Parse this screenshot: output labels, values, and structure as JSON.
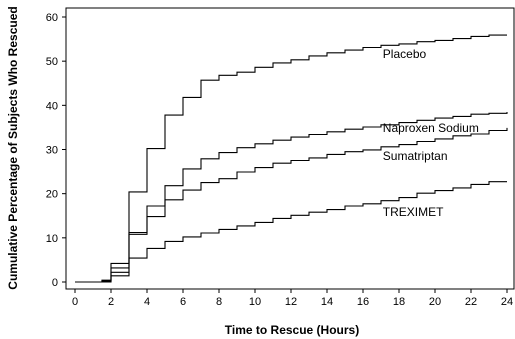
{
  "chart_data": {
    "type": "line",
    "step": true,
    "xlabel": "Time to Rescue (Hours)",
    "ylabel": "Cumulative Percentage of Subjects Who Rescued",
    "xlim": [
      0,
      24
    ],
    "ylim": [
      0,
      60
    ],
    "x_ticks": [
      0,
      2,
      4,
      6,
      8,
      10,
      12,
      14,
      16,
      18,
      20,
      22,
      24
    ],
    "y_ticks": [
      0,
      10,
      20,
      30,
      40,
      50,
      60
    ],
    "grid": false,
    "legend": "inline labels",
    "series": [
      {
        "name": "Placebo",
        "label_at": [
          17.1,
          51.6
        ],
        "points": [
          [
            0,
            0
          ],
          [
            1,
            0
          ],
          [
            1.5,
            0.4
          ],
          [
            2,
            4.2
          ],
          [
            3,
            20.4
          ],
          [
            4,
            30.2
          ],
          [
            5,
            37.8
          ],
          [
            6,
            41.8
          ],
          [
            7,
            45.7
          ],
          [
            8,
            46.8
          ],
          [
            9,
            47.5
          ],
          [
            10,
            48.6
          ],
          [
            11,
            49.6
          ],
          [
            12,
            50.3
          ],
          [
            13,
            51.2
          ],
          [
            14,
            51.9
          ],
          [
            15,
            52.5
          ],
          [
            16,
            53.1
          ],
          [
            17,
            53.6
          ],
          [
            18,
            53.9
          ],
          [
            19,
            54.4
          ],
          [
            20,
            54.7
          ],
          [
            21,
            55.1
          ],
          [
            22,
            55.6
          ],
          [
            23,
            55.9
          ]
        ]
      },
      {
        "name": "Naproxen Sodium",
        "label_at": [
          17.1,
          34.9
        ],
        "points": [
          [
            0,
            0
          ],
          [
            1,
            0
          ],
          [
            1.5,
            0.3
          ],
          [
            2,
            3.2
          ],
          [
            3,
            11.2
          ],
          [
            4,
            17.2
          ],
          [
            5,
            21.8
          ],
          [
            6,
            25.6
          ],
          [
            7,
            27.9
          ],
          [
            8,
            29.3
          ],
          [
            9,
            30.4
          ],
          [
            10,
            31.3
          ],
          [
            11,
            32.1
          ],
          [
            12,
            32.8
          ],
          [
            13,
            33.4
          ],
          [
            14,
            34
          ],
          [
            15,
            34.6
          ],
          [
            16,
            35.1
          ],
          [
            17,
            35.6
          ],
          [
            18,
            36.1
          ],
          [
            19,
            36.6
          ],
          [
            20,
            37.1
          ],
          [
            21,
            37.5
          ],
          [
            22,
            38
          ],
          [
            23,
            38.2
          ],
          [
            24,
            38.5
          ]
        ]
      },
      {
        "name": "Sumatriptan",
        "label_at": [
          17.1,
          28.5
        ],
        "points": [
          [
            0,
            0
          ],
          [
            1,
            0
          ],
          [
            1.5,
            0.2
          ],
          [
            2,
            2.2
          ],
          [
            3,
            10.8
          ],
          [
            4,
            14.8
          ],
          [
            5,
            18.6
          ],
          [
            6,
            20.8
          ],
          [
            7,
            22.5
          ],
          [
            8,
            23.4
          ],
          [
            9,
            24.9
          ],
          [
            10,
            25.9
          ],
          [
            11,
            26.9
          ],
          [
            12,
            27.5
          ],
          [
            13,
            28.1
          ],
          [
            14,
            28.9
          ],
          [
            15,
            29.5
          ],
          [
            16,
            29.9
          ],
          [
            17,
            30.6
          ],
          [
            18,
            31.1
          ],
          [
            19,
            31.8
          ],
          [
            20,
            32.4
          ],
          [
            21,
            33.1
          ],
          [
            22,
            33.5
          ],
          [
            23,
            34.3
          ],
          [
            24,
            34.9
          ]
        ]
      },
      {
        "name": "TREXIMET",
        "label_at": [
          17.1,
          15.8
        ],
        "points": [
          [
            0,
            0
          ],
          [
            1,
            0
          ],
          [
            1.5,
            0
          ],
          [
            2,
            1.4
          ],
          [
            3,
            5.4
          ],
          [
            4,
            7.6
          ],
          [
            5,
            9.2
          ],
          [
            6,
            10.2
          ],
          [
            7,
            11.1
          ],
          [
            8,
            11.9
          ],
          [
            9,
            12.7
          ],
          [
            10,
            13.5
          ],
          [
            11,
            14.4
          ],
          [
            12,
            15.1
          ],
          [
            13,
            15.8
          ],
          [
            14,
            16.4
          ],
          [
            15,
            17.2
          ],
          [
            16,
            17.7
          ],
          [
            17,
            18.4
          ],
          [
            18,
            19.1
          ],
          [
            19,
            20.1
          ],
          [
            20,
            20.7
          ],
          [
            21,
            21.3
          ],
          [
            22,
            22.1
          ],
          [
            23,
            22.7
          ]
        ]
      }
    ]
  }
}
